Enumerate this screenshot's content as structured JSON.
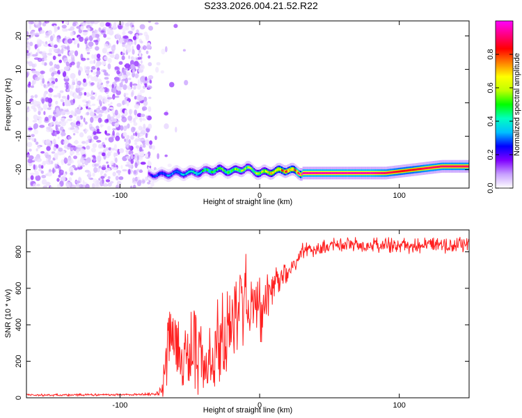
{
  "figure": {
    "title": "S233.2026.004.21.52.R22"
  },
  "chart_data": [
    {
      "type": "heatmap",
      "title": "",
      "xlabel": "Height of straight line (km)",
      "ylabel": "Frequency (Hz)",
      "xlim": [
        -167,
        150
      ],
      "ylim": [
        -25.5,
        24.5
      ],
      "x_ticks": [
        -100,
        0,
        100
      ],
      "x_tick_labels": [
        "-100",
        "0",
        "100"
      ],
      "y_ticks": [
        -20,
        -10,
        0,
        10,
        20
      ],
      "y_tick_labels": [
        "-20",
        "-10",
        "0",
        "10",
        "20"
      ],
      "colorbar": {
        "label": "Normalized spectral amplitude",
        "range": [
          0,
          1
        ],
        "ticks": [
          0,
          0.2,
          0.4,
          0.6,
          0.8
        ],
        "tick_labels": [
          "0.0",
          "0.2",
          "0.4",
          "0.6",
          "0.8"
        ],
        "colors": [
          "#ffffff",
          "#c8a0ff",
          "#8000ff",
          "#0000ff",
          "#00c0ff",
          "#00ffc0",
          "#00ff00",
          "#c0ff00",
          "#ffff00",
          "#ff8000",
          "#ff0000",
          "#ff0080",
          "#ff00ff"
        ]
      },
      "ridge_line": {
        "x": [
          -80,
          -70,
          -60,
          -50,
          -40,
          -30,
          -20,
          -10,
          0,
          10,
          20,
          30,
          40,
          60,
          80,
          90,
          100,
          110,
          120,
          130,
          140,
          150
        ],
        "y": [
          -21.5,
          -21.5,
          -21.0,
          -21.0,
          -20.5,
          -20.0,
          -20.5,
          -19.5,
          -21.0,
          -20.5,
          -20.0,
          -21.0,
          -21.0,
          -21.0,
          -21.0,
          -21.0,
          -20.5,
          -20.0,
          -19.5,
          -19.0,
          -19.0,
          -19.0
        ],
        "amplitude": [
          0.2,
          0.3,
          0.35,
          0.4,
          0.45,
          0.5,
          0.55,
          0.55,
          0.6,
          0.7,
          0.8,
          0.95,
          0.95,
          0.95,
          0.95,
          0.9,
          0.85,
          0.85,
          0.9,
          0.9,
          0.9,
          0.9
        ]
      },
      "noise_region": {
        "x_range": [
          -167,
          -78
        ],
        "y_range": [
          -25.5,
          24.5
        ],
        "amplitude_range": [
          0.02,
          0.15
        ]
      }
    },
    {
      "type": "line",
      "title": "",
      "xlabel": "Height of straight line (km)",
      "ylabel": "SNR (10 * v/v)",
      "xlim": [
        -167,
        150
      ],
      "ylim": [
        0,
        920
      ],
      "x_ticks": [
        -100,
        0,
        100
      ],
      "x_tick_labels": [
        "-100",
        "0",
        "100"
      ],
      "y_ticks": [
        0,
        200,
        400,
        600,
        800
      ],
      "y_tick_labels": [
        "0",
        "200",
        "400",
        "600",
        "800"
      ],
      "series": [
        {
          "name": "SNR",
          "color": "#ff2020",
          "x": [
            -167,
            -150,
            -130,
            -110,
            -90,
            -75,
            -70,
            -68,
            -65,
            -62,
            -60,
            -55,
            -50,
            -45,
            -40,
            -35,
            -30,
            -25,
            -20,
            -15,
            -10,
            -5,
            0,
            5,
            10,
            15,
            20,
            25,
            30,
            40,
            50,
            60,
            70,
            80,
            90,
            100,
            110,
            120,
            130,
            140,
            150
          ],
          "y": [
            15,
            15,
            16,
            17,
            18,
            20,
            40,
            120,
            300,
            360,
            280,
            160,
            250,
            320,
            150,
            230,
            330,
            350,
            420,
            500,
            560,
            520,
            480,
            520,
            600,
            640,
            700,
            740,
            800,
            810,
            830,
            845,
            840,
            835,
            840,
            835,
            830,
            835,
            830,
            840,
            835
          ],
          "noise_amplitude": [
            6,
            6,
            6,
            6,
            6,
            8,
            40,
            120,
            200,
            250,
            220,
            150,
            250,
            300,
            180,
            220,
            250,
            260,
            280,
            260,
            250,
            220,
            200,
            160,
            120,
            90,
            60,
            55,
            50,
            45,
            45,
            45,
            45,
            45,
            45,
            45,
            45,
            45,
            45,
            45,
            45
          ]
        }
      ]
    }
  ]
}
